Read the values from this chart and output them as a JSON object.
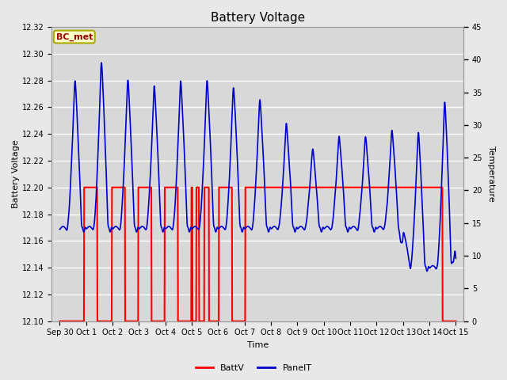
{
  "title": "Battery Voltage",
  "xlabel": "Time",
  "ylabel_left": "Battery Voltage",
  "ylabel_right": "Temperature",
  "series": {
    "BattV": {
      "color": "#FF0000",
      "linewidth": 1.5
    },
    "PanelT": {
      "color": "#0000CC",
      "linewidth": 1.2
    }
  },
  "ylim_left": [
    12.1,
    12.32
  ],
  "ylim_right": [
    0,
    45
  ],
  "background_color": "#E8E8E8",
  "plot_bg_color": "#D8D8D8",
  "grid_color": "#FFFFFF",
  "annotation_box": {
    "text": "BC_met",
    "facecolor": "#FFFFCC",
    "edgecolor": "#AAAA00",
    "textcolor": "#990000",
    "fontsize": 8,
    "fontweight": "bold"
  },
  "tick_labels": [
    "Sep 30",
    "Oct 1",
    "Oct 2",
    "Oct 3",
    "Oct 4",
    "Oct 5",
    "Oct 6",
    "Oct 7",
    "Oct 8",
    "Oct 9",
    "Oct 10",
    "Oct 11",
    "Oct 12",
    "Oct 13",
    "Oct 14",
    "Oct 15"
  ],
  "yticks_left": [
    12.1,
    12.12,
    12.14,
    12.16,
    12.18,
    12.2,
    12.22,
    12.24,
    12.26,
    12.28,
    12.3,
    12.32
  ],
  "yticks_right": [
    0,
    5,
    10,
    15,
    20,
    25,
    30,
    35,
    40,
    45
  ]
}
